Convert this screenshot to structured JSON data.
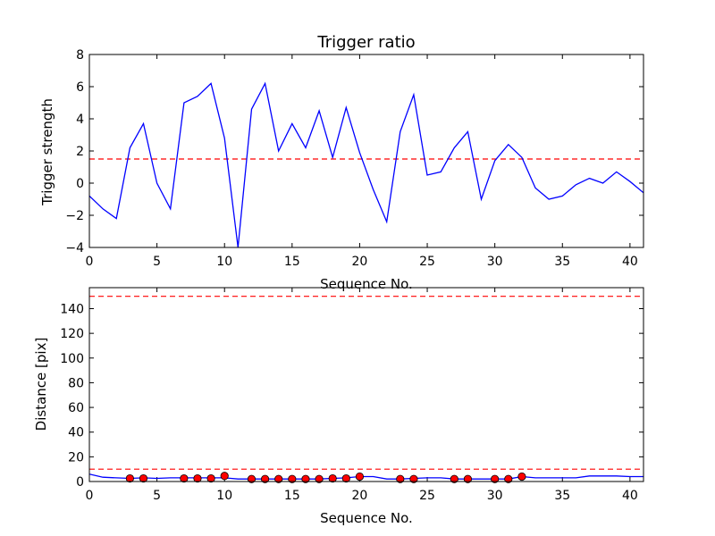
{
  "chart_data": [
    {
      "type": "line",
      "title": "Trigger ratio",
      "xlabel": "Sequence No.",
      "ylabel": "Trigger strength",
      "xlim": [
        0,
        41
      ],
      "ylim": [
        -4,
        8
      ],
      "xticks": [
        0,
        5,
        10,
        15,
        20,
        25,
        30,
        35,
        40
      ],
      "yticks": [
        -4,
        -2,
        0,
        2,
        4,
        6,
        8
      ],
      "grid": false,
      "series": [
        {
          "color": "#0000ff",
          "x": [
            0,
            1,
            2,
            3,
            4,
            5,
            6,
            7,
            8,
            9,
            10,
            11,
            12,
            13,
            14,
            15,
            16,
            17,
            18,
            19,
            20,
            21,
            22,
            23,
            24,
            25,
            26,
            27,
            28,
            29,
            30,
            31,
            32,
            33,
            34,
            35,
            36,
            37,
            38,
            39,
            40,
            41
          ],
          "y": [
            -0.8,
            -1.6,
            -2.2,
            2.2,
            3.7,
            0,
            -1.6,
            5.0,
            5.4,
            6.2,
            2.8,
            -4.0,
            4.6,
            6.2,
            2.0,
            3.7,
            2.2,
            4.5,
            1.6,
            4.7,
            1.9,
            -0.4,
            -2.4,
            3.2,
            5.5,
            0.5,
            0.7,
            2.2,
            3.2,
            -1.0,
            1.4,
            2.4,
            1.6,
            -0.3,
            -1.0,
            -0.8,
            -0.1,
            0.3,
            0,
            0.7,
            0.1,
            -0.6
          ]
        }
      ],
      "hlines": [
        {
          "y": 1.5,
          "color": "#ff0000",
          "style": "dashed"
        }
      ]
    },
    {
      "type": "line",
      "title": "",
      "xlabel": "Sequence No.",
      "ylabel": "Distance [pix]",
      "xlim": [
        0,
        41
      ],
      "ylim": [
        0,
        157
      ],
      "xticks": [
        0,
        5,
        10,
        15,
        20,
        25,
        30,
        35,
        40
      ],
      "yticks": [
        0,
        20,
        40,
        60,
        80,
        100,
        120,
        140
      ],
      "grid": false,
      "series": [
        {
          "color": "#0000ff",
          "x": [
            0,
            1,
            2,
            3,
            4,
            5,
            6,
            7,
            8,
            9,
            10,
            11,
            12,
            13,
            14,
            15,
            16,
            17,
            18,
            19,
            20,
            21,
            22,
            23,
            24,
            25,
            26,
            27,
            28,
            29,
            30,
            31,
            32,
            33,
            34,
            35,
            36,
            37,
            38,
            39,
            40,
            41
          ],
          "y": [
            6,
            3.5,
            3,
            2.5,
            3,
            2.5,
            3,
            3,
            3,
            3,
            3,
            2,
            2,
            2,
            2,
            2,
            2,
            2,
            2.5,
            3,
            4,
            4,
            2,
            2,
            2.5,
            3,
            3,
            2,
            2,
            2,
            2,
            2,
            4,
            3,
            3,
            3,
            3,
            4.5,
            4.5,
            4.5,
            4,
            4
          ]
        }
      ],
      "markers": {
        "color": "#ff0000",
        "x": [
          3,
          4,
          7,
          8,
          9,
          10,
          12,
          13,
          14,
          15,
          16,
          17,
          18,
          19,
          20,
          23,
          24,
          27,
          28,
          30,
          31,
          32
        ],
        "y": [
          2.5,
          2.5,
          2.5,
          2.5,
          2.5,
          4.5,
          2,
          2,
          2,
          2,
          2,
          2,
          2.5,
          2.5,
          4,
          2,
          2,
          2,
          2,
          2,
          2,
          4
        ]
      },
      "hlines": [
        {
          "y": 10,
          "color": "#ff0000",
          "style": "dashed"
        },
        {
          "y": 150,
          "color": "#ff0000",
          "style": "dashed"
        }
      ]
    }
  ]
}
